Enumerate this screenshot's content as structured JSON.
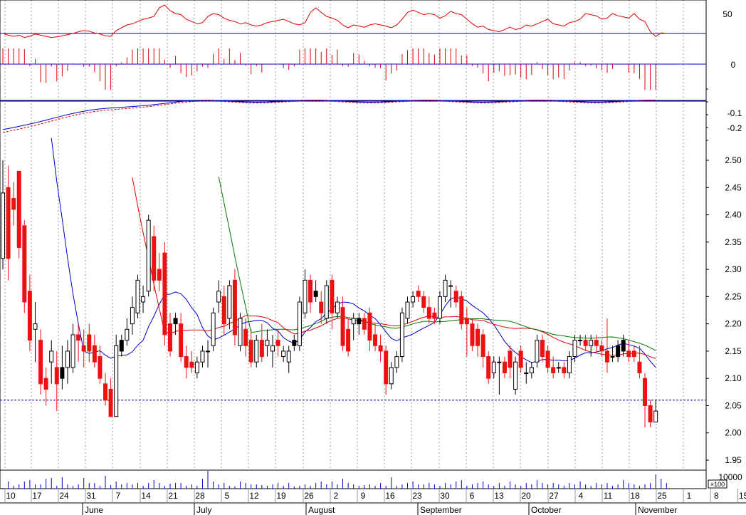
{
  "chart_data": {
    "type": "candlestick",
    "y_ticks": {
      "price": [
        "2.50",
        "2.45",
        "2.40",
        "2.35",
        "2.30",
        "2.25",
        "2.20",
        "2.15",
        "2.10",
        "2.05",
        "2.00",
        "1.95"
      ],
      "oscillator": [
        "50"
      ],
      "histogram": [
        "0"
      ],
      "trend": [
        "-0.1",
        "-0.2"
      ],
      "volume": [
        "10000"
      ],
      "volume_unit": "×100"
    },
    "x_ticks": [
      "10",
      "17",
      "24",
      "31",
      "7",
      "14",
      "21",
      "28",
      "5",
      "12",
      "19",
      "26",
      "2",
      "9",
      "16",
      "23",
      "30",
      "6",
      "13",
      "20",
      "27",
      "4",
      "11",
      "18",
      "25",
      "1",
      "8",
      "15"
    ],
    "months": [
      "June",
      "July",
      "August",
      "September",
      "October",
      "November"
    ],
    "price_ylim": [
      1.95,
      2.5
    ],
    "reference_price": 2.06,
    "candles": [
      {
        "o": 2.32,
        "h": 2.5,
        "l": 2.3,
        "c": 2.44
      },
      {
        "o": 2.45,
        "h": 2.49,
        "l": 2.28,
        "c": 2.32
      },
      {
        "o": 2.43,
        "h": 2.46,
        "l": 2.38,
        "c": 2.41
      },
      {
        "o": 2.48,
        "h": 2.48,
        "l": 2.32,
        "c": 2.34
      },
      {
        "o": 2.38,
        "h": 2.39,
        "l": 2.22,
        "c": 2.24
      },
      {
        "o": 2.26,
        "h": 2.29,
        "l": 2.15,
        "c": 2.17
      },
      {
        "o": 2.19,
        "h": 2.24,
        "l": 2.13,
        "c": 2.2
      },
      {
        "o": 2.17,
        "h": 2.19,
        "l": 2.07,
        "c": 2.09
      },
      {
        "o": 2.1,
        "h": 2.12,
        "l": 2.05,
        "c": 2.08
      },
      {
        "o": 2.13,
        "h": 2.17,
        "l": 2.09,
        "c": 2.15
      },
      {
        "o": 2.12,
        "h": 2.15,
        "l": 2.04,
        "c": 2.09
      },
      {
        "o": 2.1,
        "h": 2.16,
        "l": 2.08,
        "c": 2.12,
        "k": 1
      },
      {
        "o": 2.12,
        "h": 2.17,
        "l": 2.09,
        "c": 2.15
      },
      {
        "o": 2.12,
        "h": 2.2,
        "l": 2.11,
        "c": 2.18
      },
      {
        "o": 2.18,
        "h": 2.2,
        "l": 2.13,
        "c": 2.17,
        "k": 1
      },
      {
        "o": 2.16,
        "h": 2.19,
        "l": 2.12,
        "c": 2.15
      },
      {
        "o": 2.18,
        "h": 2.2,
        "l": 2.13,
        "c": 2.15
      },
      {
        "o": 2.16,
        "h": 2.18,
        "l": 2.12,
        "c": 2.13
      },
      {
        "o": 2.14,
        "h": 2.16,
        "l": 2.09,
        "c": 2.1
      },
      {
        "o": 2.09,
        "h": 2.11,
        "l": 2.05,
        "c": 2.06
      },
      {
        "o": 2.08,
        "h": 2.1,
        "l": 2.03,
        "c": 2.03
      },
      {
        "o": 2.03,
        "h": 2.18,
        "l": 2.03,
        "c": 2.16
      },
      {
        "o": 2.15,
        "h": 2.18,
        "l": 2.14,
        "c": 2.17,
        "k": 1
      },
      {
        "o": 2.17,
        "h": 2.21,
        "l": 2.16,
        "c": 2.19
      },
      {
        "o": 2.2,
        "h": 2.25,
        "l": 2.18,
        "c": 2.23
      },
      {
        "o": 2.22,
        "h": 2.29,
        "l": 2.21,
        "c": 2.28
      },
      {
        "o": 2.24,
        "h": 2.27,
        "l": 2.22,
        "c": 2.25
      },
      {
        "o": 2.26,
        "h": 2.4,
        "l": 2.25,
        "c": 2.39
      },
      {
        "o": 2.36,
        "h": 2.38,
        "l": 2.26,
        "c": 2.28
      },
      {
        "o": 2.3,
        "h": 2.33,
        "l": 2.26,
        "c": 2.28
      },
      {
        "o": 2.33,
        "h": 2.35,
        "l": 2.16,
        "c": 2.18
      },
      {
        "o": 2.2,
        "h": 2.22,
        "l": 2.14,
        "c": 2.15
      },
      {
        "o": 2.2,
        "h": 2.22,
        "l": 2.18,
        "c": 2.21,
        "k": 1
      },
      {
        "o": 2.2,
        "h": 2.22,
        "l": 2.13,
        "c": 2.14
      },
      {
        "o": 2.14,
        "h": 2.16,
        "l": 2.1,
        "c": 2.12
      },
      {
        "o": 2.13,
        "h": 2.15,
        "l": 2.11,
        "c": 2.12
      },
      {
        "o": 2.11,
        "h": 2.14,
        "l": 2.1,
        "c": 2.13
      },
      {
        "o": 2.13,
        "h": 2.16,
        "l": 2.12,
        "c": 2.15
      },
      {
        "o": 2.15,
        "h": 2.17,
        "l": 2.12,
        "c": 2.15
      },
      {
        "o": 2.16,
        "h": 2.23,
        "l": 2.15,
        "c": 2.22
      },
      {
        "o": 2.24,
        "h": 2.28,
        "l": 2.22,
        "c": 2.26
      },
      {
        "o": 2.25,
        "h": 2.27,
        "l": 2.18,
        "c": 2.2
      },
      {
        "o": 2.21,
        "h": 2.28,
        "l": 2.19,
        "c": 2.27
      },
      {
        "o": 2.28,
        "h": 2.3,
        "l": 2.16,
        "c": 2.18
      },
      {
        "o": 2.16,
        "h": 2.22,
        "l": 2.15,
        "c": 2.21
      },
      {
        "o": 2.19,
        "h": 2.21,
        "l": 2.14,
        "c": 2.16
      },
      {
        "o": 2.17,
        "h": 2.19,
        "l": 2.12,
        "c": 2.13
      },
      {
        "o": 2.13,
        "h": 2.18,
        "l": 2.12,
        "c": 2.17
      },
      {
        "o": 2.17,
        "h": 2.2,
        "l": 2.13,
        "c": 2.14
      },
      {
        "o": 2.16,
        "h": 2.19,
        "l": 2.14,
        "c": 2.17
      },
      {
        "o": 2.15,
        "h": 2.18,
        "l": 2.12,
        "c": 2.16
      },
      {
        "o": 2.17,
        "h": 2.19,
        "l": 2.14,
        "c": 2.16
      },
      {
        "o": 2.14,
        "h": 2.16,
        "l": 2.13,
        "c": 2.15
      },
      {
        "o": 2.13,
        "h": 2.16,
        "l": 2.11,
        "c": 2.15
      },
      {
        "o": 2.16,
        "h": 2.18,
        "l": 2.15,
        "c": 2.17,
        "k": 1
      },
      {
        "o": 2.16,
        "h": 2.25,
        "l": 2.15,
        "c": 2.24
      },
      {
        "o": 2.22,
        "h": 2.3,
        "l": 2.21,
        "c": 2.28
      },
      {
        "o": 2.28,
        "h": 2.29,
        "l": 2.22,
        "c": 2.24
      },
      {
        "o": 2.25,
        "h": 2.28,
        "l": 2.24,
        "c": 2.26,
        "k": 1
      },
      {
        "o": 2.24,
        "h": 2.26,
        "l": 2.2,
        "c": 2.22
      },
      {
        "o": 2.21,
        "h": 2.28,
        "l": 2.2,
        "c": 2.27
      },
      {
        "o": 2.28,
        "h": 2.29,
        "l": 2.19,
        "c": 2.22
      },
      {
        "o": 2.22,
        "h": 2.25,
        "l": 2.21,
        "c": 2.24
      },
      {
        "o": 2.23,
        "h": 2.25,
        "l": 2.15,
        "c": 2.16
      },
      {
        "o": 2.19,
        "h": 2.21,
        "l": 2.14,
        "c": 2.15
      },
      {
        "o": 2.2,
        "h": 2.22,
        "l": 2.17,
        "c": 2.21
      },
      {
        "o": 2.2,
        "h": 2.22,
        "l": 2.18,
        "c": 2.21,
        "k": 1
      },
      {
        "o": 2.21,
        "h": 2.22,
        "l": 2.18,
        "c": 2.19
      },
      {
        "o": 2.22,
        "h": 2.23,
        "l": 2.15,
        "c": 2.17
      },
      {
        "o": 2.18,
        "h": 2.2,
        "l": 2.15,
        "c": 2.16
      },
      {
        "o": 2.16,
        "h": 2.18,
        "l": 2.13,
        "c": 2.15
      },
      {
        "o": 2.15,
        "h": 2.16,
        "l": 2.07,
        "c": 2.09
      },
      {
        "o": 2.09,
        "h": 2.13,
        "l": 2.08,
        "c": 2.12
      },
      {
        "o": 2.12,
        "h": 2.15,
        "l": 2.11,
        "c": 2.14
      },
      {
        "o": 2.14,
        "h": 2.23,
        "l": 2.13,
        "c": 2.22
      },
      {
        "o": 2.21,
        "h": 2.25,
        "l": 2.2,
        "c": 2.24
      },
      {
        "o": 2.24,
        "h": 2.26,
        "l": 2.23,
        "c": 2.25
      },
      {
        "o": 2.26,
        "h": 2.27,
        "l": 2.24,
        "c": 2.25
      },
      {
        "o": 2.25,
        "h": 2.26,
        "l": 2.22,
        "c": 2.23
      },
      {
        "o": 2.23,
        "h": 2.25,
        "l": 2.2,
        "c": 2.21
      },
      {
        "o": 2.22,
        "h": 2.23,
        "l": 2.2,
        "c": 2.21,
        "k": 1
      },
      {
        "o": 2.21,
        "h": 2.26,
        "l": 2.2,
        "c": 2.25
      },
      {
        "o": 2.25,
        "h": 2.29,
        "l": 2.24,
        "c": 2.28
      },
      {
        "o": 2.27,
        "h": 2.28,
        "l": 2.23,
        "c": 2.27,
        "k": 1
      },
      {
        "o": 2.26,
        "h": 2.27,
        "l": 2.23,
        "c": 2.24
      },
      {
        "o": 2.25,
        "h": 2.26,
        "l": 2.19,
        "c": 2.2
      },
      {
        "o": 2.21,
        "h": 2.23,
        "l": 2.14,
        "c": 2.2,
        "k": 1
      },
      {
        "o": 2.2,
        "h": 2.21,
        "l": 2.15,
        "c": 2.16
      },
      {
        "o": 2.19,
        "h": 2.2,
        "l": 2.14,
        "c": 2.16
      },
      {
        "o": 2.18,
        "h": 2.19,
        "l": 2.12,
        "c": 2.14
      },
      {
        "o": 2.14,
        "h": 2.15,
        "l": 2.09,
        "c": 2.1
      },
      {
        "o": 2.11,
        "h": 2.14,
        "l": 2.1,
        "c": 2.13
      },
      {
        "o": 2.13,
        "h": 2.14,
        "l": 2.07,
        "c": 2.13,
        "k": 1
      },
      {
        "o": 2.13,
        "h": 2.14,
        "l": 2.1,
        "c": 2.11
      },
      {
        "o": 2.15,
        "h": 2.16,
        "l": 2.1,
        "c": 2.12
      },
      {
        "o": 2.08,
        "h": 2.14,
        "l": 2.07,
        "c": 2.13
      },
      {
        "o": 2.15,
        "h": 2.16,
        "l": 2.11,
        "c": 2.12
      },
      {
        "o": 2.11,
        "h": 2.13,
        "l": 2.09,
        "c": 2.11,
        "k": 1
      },
      {
        "o": 2.11,
        "h": 2.13,
        "l": 2.1,
        "c": 2.12
      },
      {
        "o": 2.13,
        "h": 2.18,
        "l": 2.12,
        "c": 2.17
      },
      {
        "o": 2.17,
        "h": 2.18,
        "l": 2.13,
        "c": 2.14
      },
      {
        "o": 2.15,
        "h": 2.16,
        "l": 2.11,
        "c": 2.12
      },
      {
        "o": 2.12,
        "h": 2.14,
        "l": 2.1,
        "c": 2.11
      },
      {
        "o": 2.12,
        "h": 2.13,
        "l": 2.11,
        "c": 2.12,
        "k": 1
      },
      {
        "o": 2.12,
        "h": 2.13,
        "l": 2.1,
        "c": 2.11
      },
      {
        "o": 2.11,
        "h": 2.15,
        "l": 2.1,
        "c": 2.14
      },
      {
        "o": 2.14,
        "h": 2.18,
        "l": 2.13,
        "c": 2.17
      },
      {
        "o": 2.17,
        "h": 2.18,
        "l": 2.16,
        "c": 2.17
      },
      {
        "o": 2.17,
        "h": 2.18,
        "l": 2.15,
        "c": 2.16
      },
      {
        "o": 2.16,
        "h": 2.18,
        "l": 2.14,
        "c": 2.17
      },
      {
        "o": 2.17,
        "h": 2.18,
        "l": 2.15,
        "c": 2.16
      },
      {
        "o": 2.16,
        "h": 2.17,
        "l": 2.14,
        "c": 2.15
      },
      {
        "o": 2.15,
        "h": 2.21,
        "l": 2.11,
        "c": 2.13
      },
      {
        "o": 2.14,
        "h": 2.16,
        "l": 2.13,
        "c": 2.14,
        "k": 1
      },
      {
        "o": 2.14,
        "h": 2.17,
        "l": 2.13,
        "c": 2.16,
        "k": 1
      },
      {
        "o": 2.15,
        "h": 2.18,
        "l": 2.14,
        "c": 2.17,
        "k": 1
      },
      {
        "o": 2.15,
        "h": 2.17,
        "l": 2.13,
        "c": 2.14
      },
      {
        "o": 2.15,
        "h": 2.16,
        "l": 2.13,
        "c": 2.14
      },
      {
        "o": 2.13,
        "h": 2.16,
        "l": 2.1,
        "c": 2.11
      },
      {
        "o": 2.1,
        "h": 2.11,
        "l": 2.01,
        "c": 2.05
      },
      {
        "o": 2.05,
        "h": 2.06,
        "l": 2.01,
        "c": 2.02
      },
      {
        "o": 2.02,
        "h": 2.06,
        "l": 2.02,
        "c": 2.04
      }
    ],
    "volumes": [
      1,
      10,
      4,
      6,
      10,
      12,
      6,
      6,
      14,
      15,
      4,
      16,
      6,
      4,
      6,
      15,
      8,
      8,
      4,
      18,
      5,
      10,
      6,
      8,
      6,
      8,
      4,
      8,
      12,
      8,
      4,
      7,
      8,
      8,
      4,
      6,
      4,
      14,
      28,
      10,
      6,
      8,
      4,
      3,
      10,
      8,
      6,
      6,
      5,
      4,
      6,
      8,
      4,
      8,
      3,
      4,
      6,
      4,
      8,
      10,
      6,
      10,
      6,
      14,
      8,
      6,
      4,
      5,
      6,
      4,
      8,
      4,
      16,
      4,
      6,
      8,
      10,
      6,
      6,
      8,
      6,
      4,
      8,
      6,
      10,
      12,
      4,
      6,
      8,
      10,
      6,
      4,
      8,
      4,
      10,
      6,
      4,
      8,
      6,
      12,
      8,
      6,
      8,
      6,
      4,
      8,
      6,
      10,
      6,
      4,
      8,
      6,
      8,
      4,
      6,
      12,
      8,
      6,
      4,
      6,
      8,
      20,
      14,
      8
    ],
    "moving_averages": [
      {
        "color": "#0000cc",
        "from": 9
      },
      {
        "color": "#dd0000",
        "from": 24
      },
      {
        "color": "#007700",
        "from": 40
      }
    ],
    "colors": {
      "down": "#ee1111",
      "up_filled": "#000000",
      "up_hollow": "#ffffff",
      "volume": "#0000cc",
      "guide": "#0000cc",
      "osc": "#dd0000",
      "grid": "#999999"
    }
  }
}
